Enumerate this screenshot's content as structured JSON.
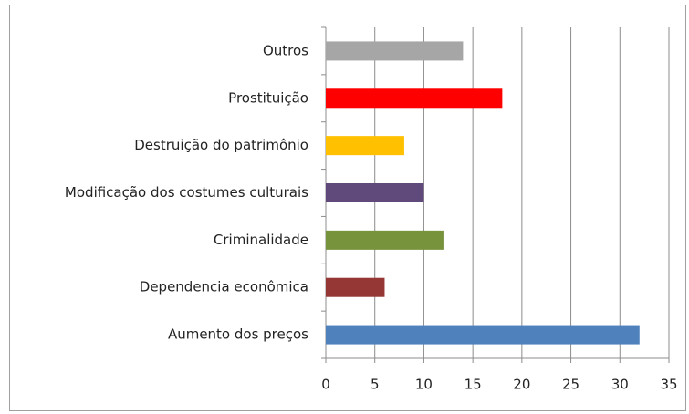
{
  "chart_data": {
    "type": "bar",
    "orientation": "horizontal",
    "categories": [
      "Outros",
      "Prostituição",
      "Destruição do patrimônio",
      "Modificação dos costumes culturais",
      "Criminalidade",
      "Dependencia econômica",
      "Aumento dos preços"
    ],
    "values": [
      14,
      18,
      8,
      10,
      12,
      6,
      32
    ],
    "colors": [
      "#a6a6a6",
      "#ff0000",
      "#ffc000",
      "#604a7b",
      "#77933c",
      "#953735",
      "#4f81bd"
    ],
    "xlim": [
      0,
      35
    ],
    "xticks": [
      0,
      5,
      10,
      15,
      20,
      25,
      30,
      35
    ],
    "grid": true
  }
}
